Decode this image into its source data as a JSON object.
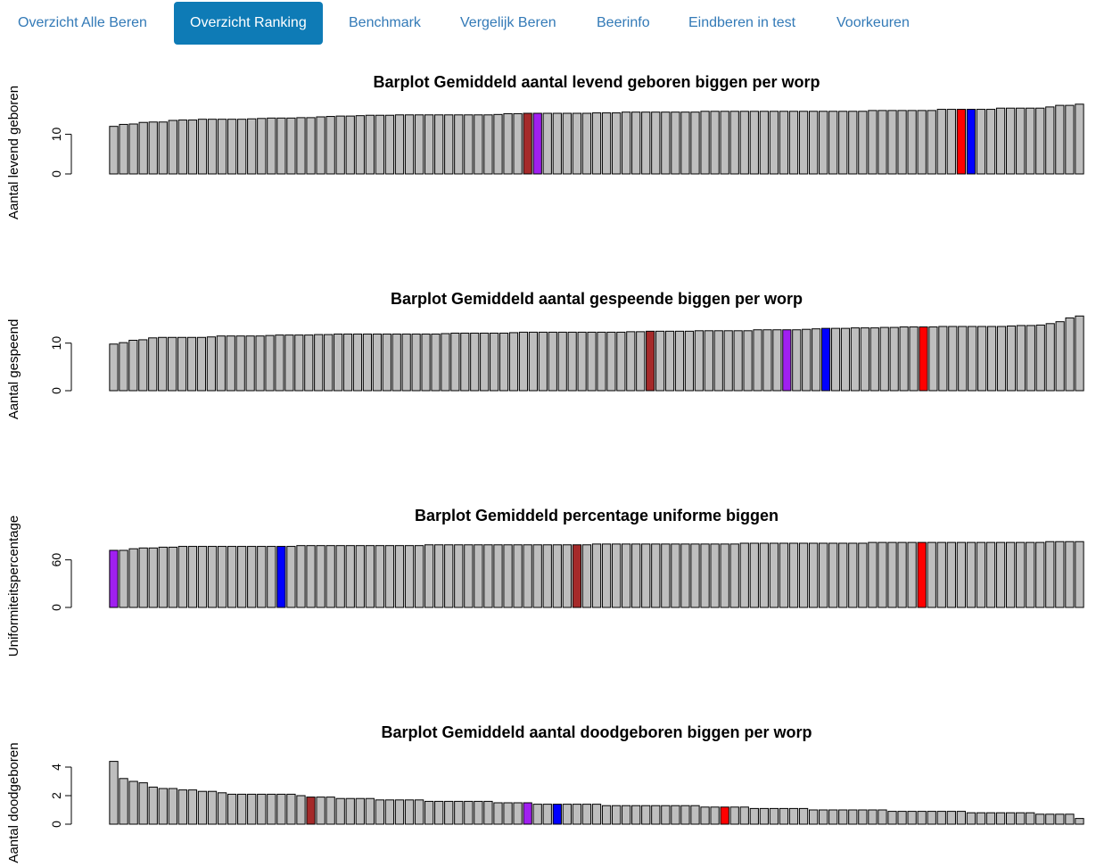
{
  "nav": {
    "tabs": [
      {
        "label": "Overzicht Alle Beren",
        "active": false
      },
      {
        "label": "Overzicht Ranking",
        "active": true
      },
      {
        "label": "Benchmark",
        "active": false
      },
      {
        "label": "Vergelijk Beren",
        "active": false
      },
      {
        "label": "Beerinfo",
        "active": false
      },
      {
        "label": "Eindberen in test",
        "active": false
      },
      {
        "label": "Voorkeuren",
        "active": false
      }
    ]
  },
  "colors": {
    "bar_default": "#bebebe",
    "nav_active_bg": "#0e7bb6",
    "nav_link": "#337ab7",
    "highlight_purple": "#a020f0",
    "highlight_darkred": "#a52a2a",
    "highlight_red": "#ff0000",
    "highlight_blue": "#0000ff"
  },
  "chart_data": [
    {
      "type": "bar",
      "title": "Barplot Gemiddeld aantal levend geboren biggen per worp",
      "ylabel": "Aantal levend geboren",
      "yticks": [
        0,
        10
      ],
      "ylim": [
        0,
        18
      ],
      "values": [
        12.0,
        12.5,
        12.6,
        13.0,
        13.1,
        13.1,
        13.5,
        13.6,
        13.6,
        13.8,
        13.8,
        13.8,
        13.8,
        13.8,
        13.9,
        14.0,
        14.1,
        14.1,
        14.1,
        14.2,
        14.2,
        14.4,
        14.5,
        14.6,
        14.6,
        14.7,
        14.8,
        14.8,
        14.8,
        14.9,
        14.9,
        14.9,
        14.9,
        14.9,
        14.9,
        14.9,
        14.9,
        14.9,
        14.9,
        15.0,
        15.2,
        15.2,
        15.3,
        15.3,
        15.3,
        15.3,
        15.3,
        15.3,
        15.3,
        15.4,
        15.4,
        15.4,
        15.6,
        15.6,
        15.6,
        15.6,
        15.6,
        15.6,
        15.6,
        15.6,
        15.8,
        15.8,
        15.8,
        15.8,
        15.8,
        15.8,
        15.8,
        15.8,
        15.8,
        15.8,
        15.8,
        15.8,
        15.8,
        15.8,
        15.8,
        15.8,
        15.8,
        16.0,
        16.0,
        16.0,
        16.0,
        16.0,
        16.0,
        16.0,
        16.3,
        16.3,
        16.3,
        16.3,
        16.3,
        16.3,
        16.6,
        16.6,
        16.6,
        16.6,
        16.6,
        16.9,
        17.3,
        17.3,
        17.6
      ],
      "highlights": [
        {
          "index": 42,
          "color": "#a52a2a"
        },
        {
          "index": 43,
          "color": "#a020f0"
        },
        {
          "index": 86,
          "color": "#ff0000"
        },
        {
          "index": 87,
          "color": "#0000ff"
        }
      ]
    },
    {
      "type": "bar",
      "title": "Barplot Gemiddeld aantal gespeende biggen per worp",
      "ylabel": "Aantal gespeend",
      "yticks": [
        0,
        10
      ],
      "ylim": [
        0,
        15
      ],
      "values": [
        9.8,
        10.1,
        10.6,
        10.7,
        11.1,
        11.2,
        11.2,
        11.2,
        11.2,
        11.2,
        11.3,
        11.5,
        11.5,
        11.5,
        11.5,
        11.5,
        11.6,
        11.7,
        11.7,
        11.7,
        11.7,
        11.8,
        11.8,
        11.9,
        11.9,
        11.9,
        11.9,
        11.9,
        11.9,
        11.9,
        11.9,
        11.9,
        11.9,
        11.9,
        12.0,
        12.1,
        12.1,
        12.1,
        12.1,
        12.1,
        12.1,
        12.2,
        12.3,
        12.3,
        12.3,
        12.3,
        12.3,
        12.3,
        12.3,
        12.3,
        12.3,
        12.3,
        12.3,
        12.4,
        12.4,
        12.5,
        12.5,
        12.5,
        12.5,
        12.5,
        12.6,
        12.6,
        12.6,
        12.6,
        12.6,
        12.6,
        12.8,
        12.8,
        12.8,
        12.8,
        12.8,
        12.9,
        13.0,
        13.1,
        13.1,
        13.1,
        13.2,
        13.2,
        13.2,
        13.3,
        13.3,
        13.4,
        13.4,
        13.4,
        13.4,
        13.5,
        13.5,
        13.5,
        13.5,
        13.5,
        13.5,
        13.5,
        13.6,
        13.7,
        13.7,
        13.8,
        14.1,
        14.5,
        15.3,
        15.7
      ],
      "highlights": [
        {
          "index": 55,
          "color": "#a52a2a"
        },
        {
          "index": 69,
          "color": "#a020f0"
        },
        {
          "index": 73,
          "color": "#0000ff"
        },
        {
          "index": 83,
          "color": "#ff0000"
        }
      ]
    },
    {
      "type": "bar",
      "title": "Barplot Gemiddeld percentage uniforme biggen",
      "ylabel": "Uniformiteitspercentage",
      "yticks": [
        0,
        60
      ],
      "ylim": [
        0,
        90
      ],
      "values": [
        72,
        72,
        74,
        75,
        75,
        76,
        76,
        77,
        77,
        77,
        77,
        77,
        77,
        77,
        77,
        77,
        77,
        77,
        77,
        78,
        78,
        78,
        78,
        78,
        78,
        78,
        78,
        78,
        78,
        78,
        78,
        78,
        79,
        79,
        79,
        79,
        79,
        79,
        79,
        79,
        79,
        79,
        79,
        79,
        79,
        79,
        79,
        79,
        79,
        80,
        80,
        80,
        80,
        80,
        80,
        80,
        80,
        80,
        80,
        80,
        80,
        80,
        80,
        80,
        81,
        81,
        81,
        81,
        81,
        81,
        81,
        81,
        81,
        81,
        81,
        81,
        81,
        82,
        82,
        82,
        82,
        82,
        82,
        82,
        82,
        82,
        82,
        82,
        82,
        82,
        82,
        82,
        82,
        82,
        82,
        83,
        83,
        83,
        83
      ],
      "highlights": [
        {
          "index": 0,
          "color": "#a020f0"
        },
        {
          "index": 17,
          "color": "#0000ff"
        },
        {
          "index": 47,
          "color": "#a52a2a"
        },
        {
          "index": 82,
          "color": "#ff0000"
        }
      ]
    },
    {
      "type": "bar",
      "title": "Barplot Gemiddeld aantal doodgeboren biggen per worp",
      "ylabel": "Aantal doodgeboren",
      "yticks": [
        0,
        2,
        4
      ],
      "ylim": [
        0,
        5
      ],
      "values": [
        4.4,
        3.2,
        3.0,
        2.9,
        2.6,
        2.5,
        2.5,
        2.4,
        2.4,
        2.3,
        2.3,
        2.2,
        2.1,
        2.1,
        2.1,
        2.1,
        2.1,
        2.1,
        2.1,
        2.0,
        1.9,
        1.9,
        1.9,
        1.8,
        1.8,
        1.8,
        1.8,
        1.7,
        1.7,
        1.7,
        1.7,
        1.7,
        1.6,
        1.6,
        1.6,
        1.6,
        1.6,
        1.6,
        1.6,
        1.5,
        1.5,
        1.5,
        1.5,
        1.4,
        1.4,
        1.4,
        1.4,
        1.4,
        1.4,
        1.4,
        1.3,
        1.3,
        1.3,
        1.3,
        1.3,
        1.3,
        1.3,
        1.3,
        1.3,
        1.3,
        1.2,
        1.2,
        1.2,
        1.2,
        1.2,
        1.1,
        1.1,
        1.1,
        1.1,
        1.1,
        1.1,
        1.0,
        1.0,
        1.0,
        1.0,
        1.0,
        1.0,
        1.0,
        1.0,
        0.9,
        0.9,
        0.9,
        0.9,
        0.9,
        0.9,
        0.9,
        0.9,
        0.8,
        0.8,
        0.8,
        0.8,
        0.8,
        0.8,
        0.8,
        0.7,
        0.7,
        0.7,
        0.7,
        0.4
      ],
      "highlights": [
        {
          "index": 20,
          "color": "#a52a2a"
        },
        {
          "index": 42,
          "color": "#a020f0"
        },
        {
          "index": 45,
          "color": "#0000ff"
        },
        {
          "index": 62,
          "color": "#ff0000"
        }
      ]
    }
  ]
}
